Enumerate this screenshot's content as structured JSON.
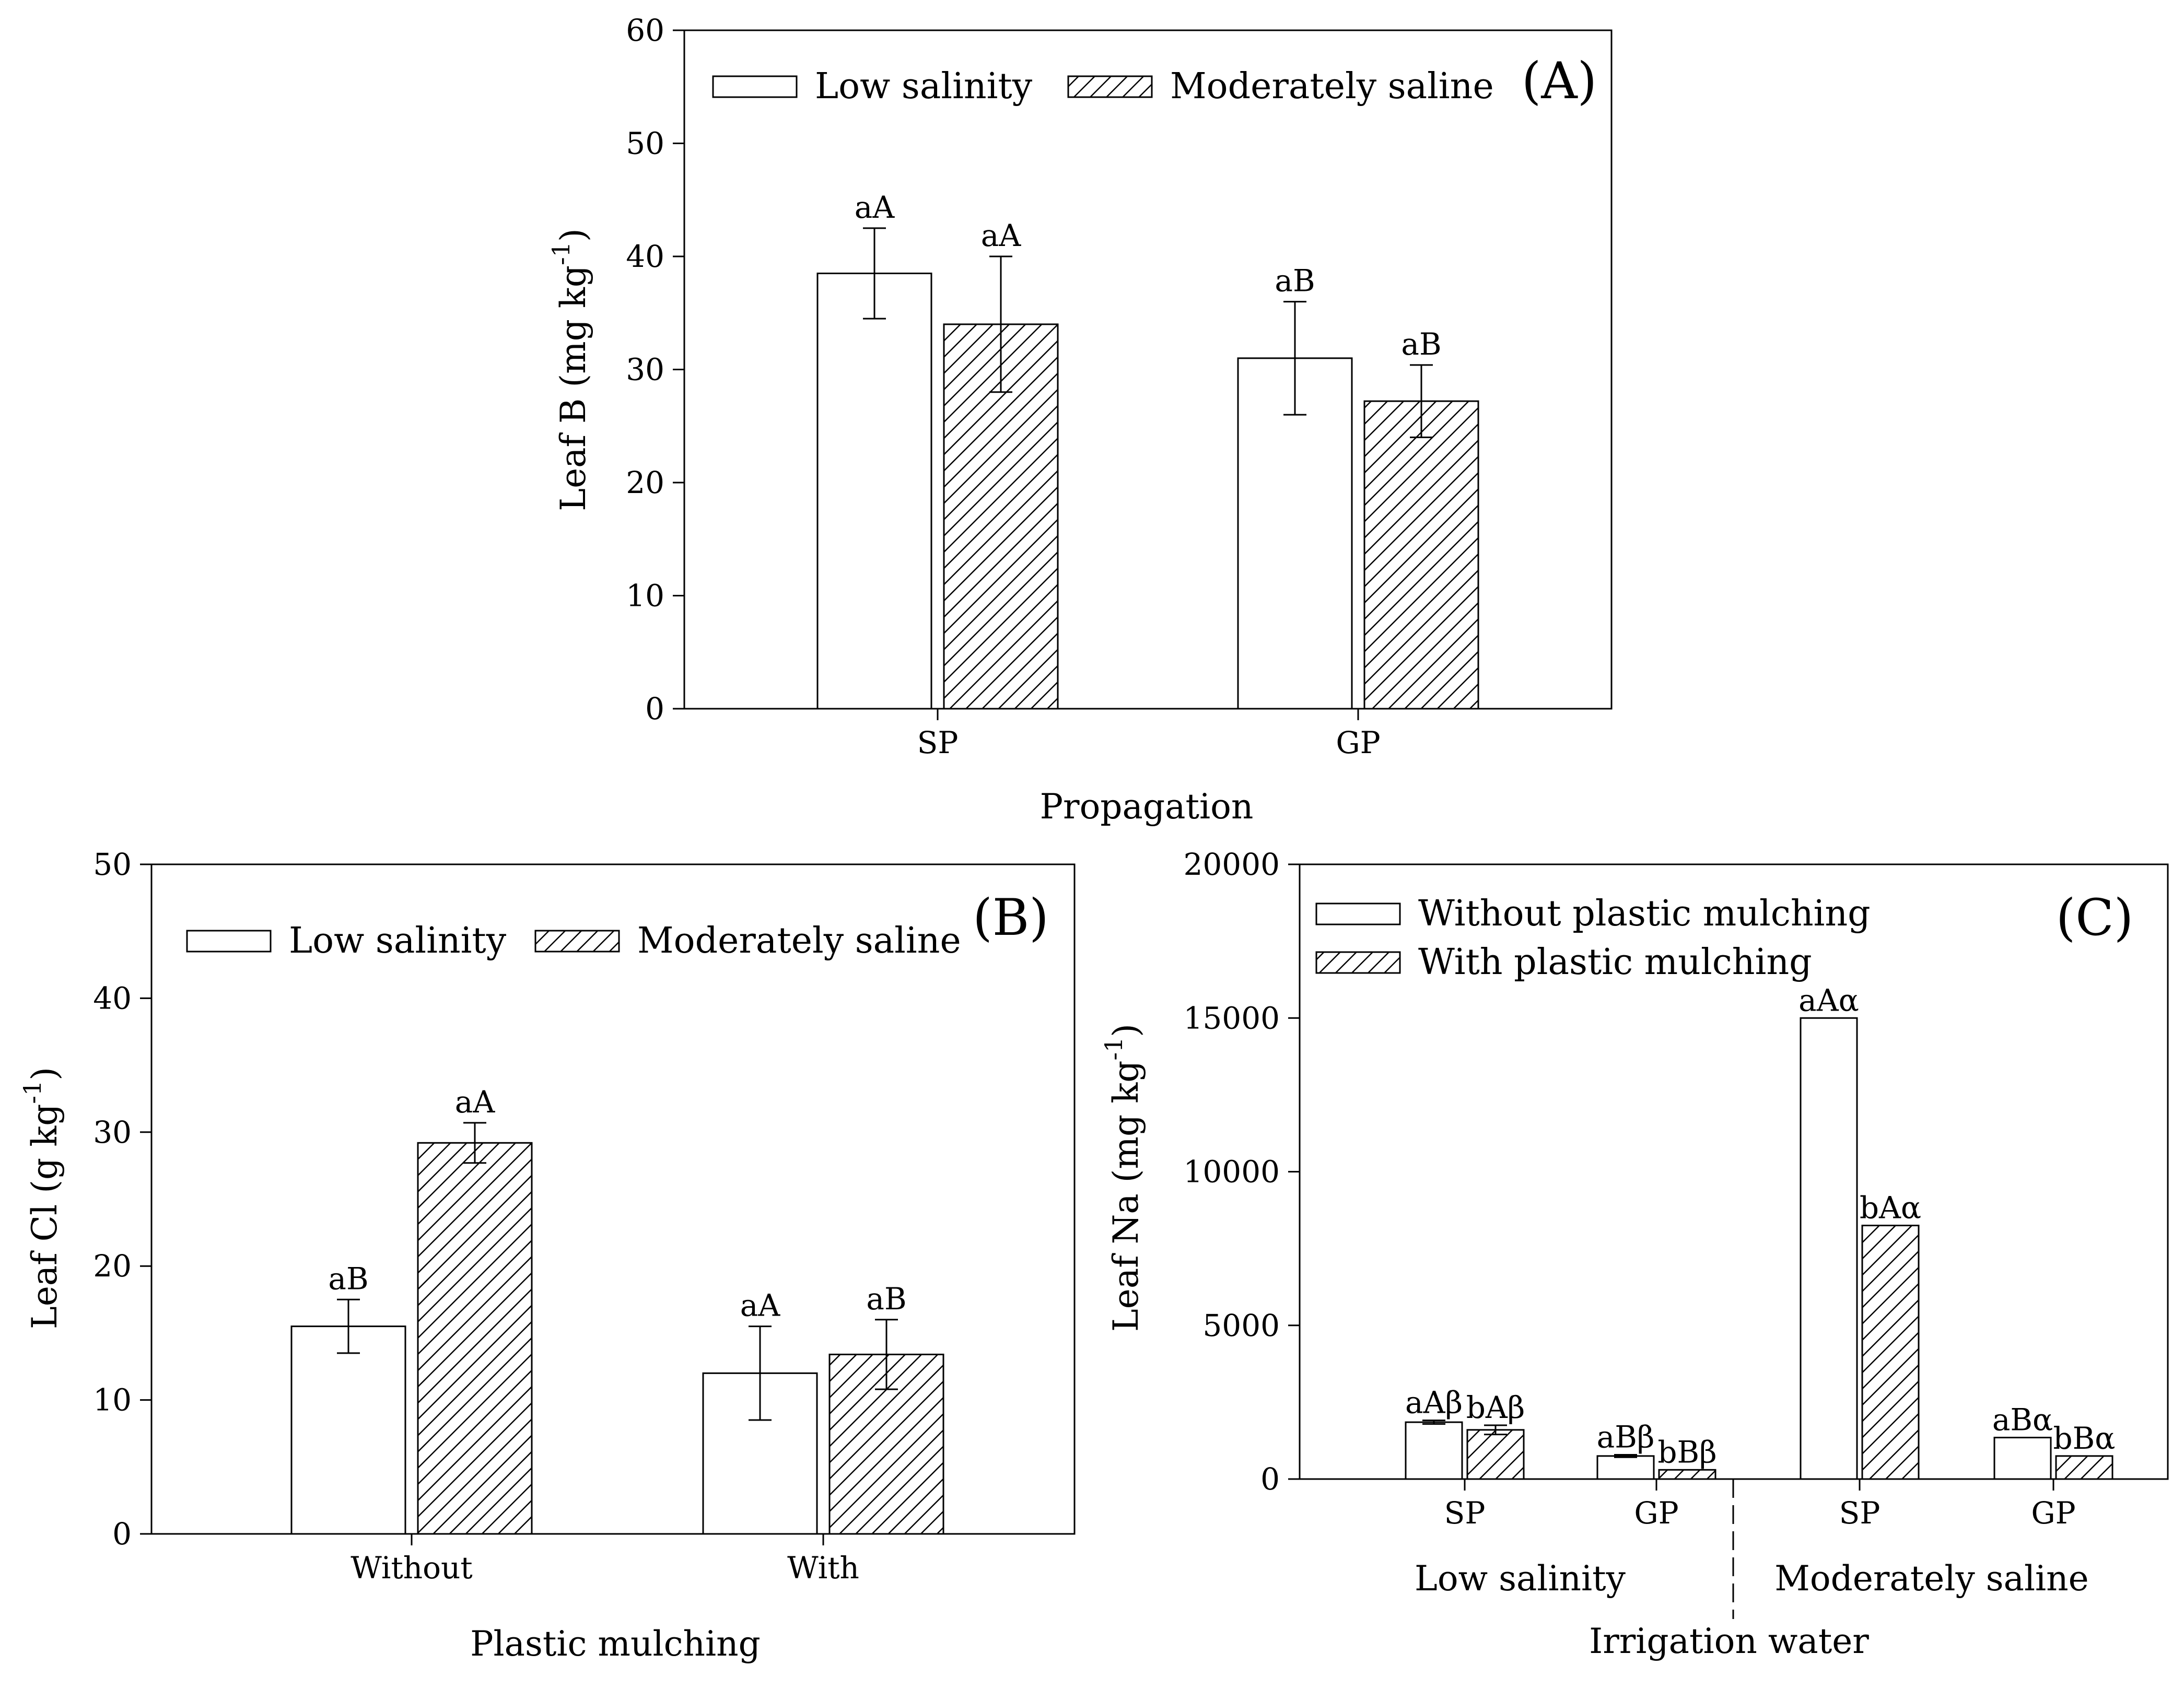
{
  "chart_data": [
    {
      "type": "bar",
      "panel_label": "(A)",
      "xlabel": "Propagation",
      "ylabel": "Leaf B (mg kg",
      "ylabel_sup": "-1",
      "ylabel_close": ")",
      "ylim": [
        0,
        60
      ],
      "yticks": [
        "0",
        "10",
        "20",
        "30",
        "40",
        "50",
        "60"
      ],
      "categories": [
        "SP",
        "GP"
      ],
      "series": [
        {
          "name": "Low salinity",
          "pattern": "open",
          "values": [
            38.5,
            31.0
          ],
          "errors": [
            4.0,
            5.0
          ],
          "labels": [
            "aA",
            "aB"
          ]
        },
        {
          "name": "Moderately saline",
          "pattern": "hatched",
          "values": [
            34.0,
            27.2
          ],
          "errors": [
            6.0,
            3.2
          ],
          "labels": [
            "aA",
            "aB"
          ]
        }
      ],
      "legend_position": "top-left"
    },
    {
      "type": "bar",
      "panel_label": "(B)",
      "xlabel": "Plastic mulching",
      "ylabel": "Leaf Cl (g kg",
      "ylabel_sup": "-1",
      "ylabel_close": ")",
      "ylim": [
        0,
        50
      ],
      "yticks": [
        "0",
        "10",
        "20",
        "30",
        "40",
        "50"
      ],
      "categories": [
        "Without",
        "With"
      ],
      "series": [
        {
          "name": "Low salinity",
          "pattern": "open",
          "values": [
            15.5,
            12.0
          ],
          "errors": [
            2.0,
            3.5
          ],
          "labels": [
            "aB",
            "aA"
          ]
        },
        {
          "name": "Moderately saline",
          "pattern": "hatched",
          "values": [
            29.2,
            13.4
          ],
          "errors": [
            1.5,
            2.6
          ],
          "labels": [
            "aA",
            "aB"
          ]
        }
      ],
      "legend_position": "top-left"
    },
    {
      "type": "bar",
      "panel_label": "(C)",
      "xlabel": "Irrigation water",
      "ylabel": "Leaf Na (mg kg",
      "ylabel_sup": "-1",
      "ylabel_close": ")",
      "ylim": [
        0,
        20000
      ],
      "yticks": [
        "0",
        "5000",
        "10000",
        "15000",
        "20000"
      ],
      "categories": [
        "SP",
        "GP",
        "SP",
        "GP"
      ],
      "groups": [
        "Low salinity",
        "Moderately saline"
      ],
      "series": [
        {
          "name": "Without plastic mulching",
          "pattern": "open",
          "values": [
            1850,
            750,
            15000,
            1350
          ],
          "errors": [
            60,
            40,
            0,
            0
          ],
          "labels": [
            "aAβ",
            "aBβ",
            "aAα",
            "aBα"
          ]
        },
        {
          "name": "With plastic mulching",
          "pattern": "hatched",
          "values": [
            1600,
            300,
            8250,
            750
          ],
          "errors": [
            150,
            0,
            0,
            0
          ],
          "labels": [
            "bAβ",
            "bBβ",
            "bAα",
            "bBα"
          ]
        }
      ],
      "legend_position": "top-left"
    }
  ]
}
